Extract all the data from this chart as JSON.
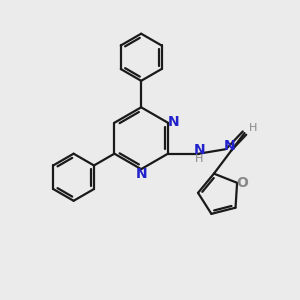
{
  "background_color": "#ebebeb",
  "bond_color": "#1a1a1a",
  "nitrogen_color": "#2222cc",
  "oxygen_color": "#888888",
  "hydrogen_color": "#888888",
  "figsize": [
    3.0,
    3.0
  ],
  "dpi": 100,
  "xlim": [
    0,
    10
  ],
  "ylim": [
    0,
    10
  ]
}
